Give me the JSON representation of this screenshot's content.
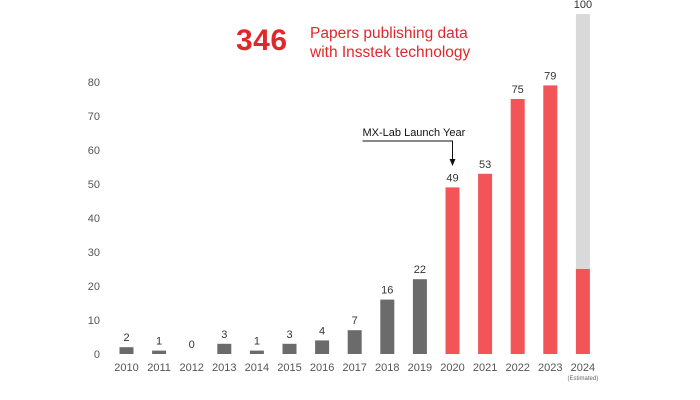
{
  "headline": {
    "number": "346",
    "line1": "Papers publishing data",
    "line2": "with Insstek technology"
  },
  "colors": {
    "gray_bar": "#6b6b6b",
    "red_bar": "#f25458",
    "estimate_fill": "#d9d9d9",
    "accent_text": "#e0282b"
  },
  "chart_data": {
    "type": "bar",
    "categories": [
      "2010",
      "2011",
      "2012",
      "2013",
      "2014",
      "2015",
      "2016",
      "2017",
      "2018",
      "2019",
      "2020",
      "2021",
      "2022",
      "2023",
      "2024"
    ],
    "values": [
      2,
      1,
      0,
      3,
      1,
      3,
      4,
      7,
      16,
      22,
      49,
      53,
      75,
      79,
      100
    ],
    "estimated_actual_portion_2024": 25,
    "bar_colors": [
      "gray",
      "gray",
      "gray",
      "gray",
      "gray",
      "gray",
      "gray",
      "gray",
      "gray",
      "gray",
      "red",
      "red",
      "red",
      "red",
      "red+lightgray (estimated)"
    ],
    "category_notes": {
      "2024": "(Estimated)"
    },
    "yticks": [
      0,
      10,
      20,
      30,
      40,
      50,
      60,
      70,
      80
    ],
    "ylim": [
      0,
      100
    ],
    "grid": false,
    "annotations": [
      {
        "text": "MX-Lab Launch Year",
        "target": "2020"
      }
    ]
  }
}
